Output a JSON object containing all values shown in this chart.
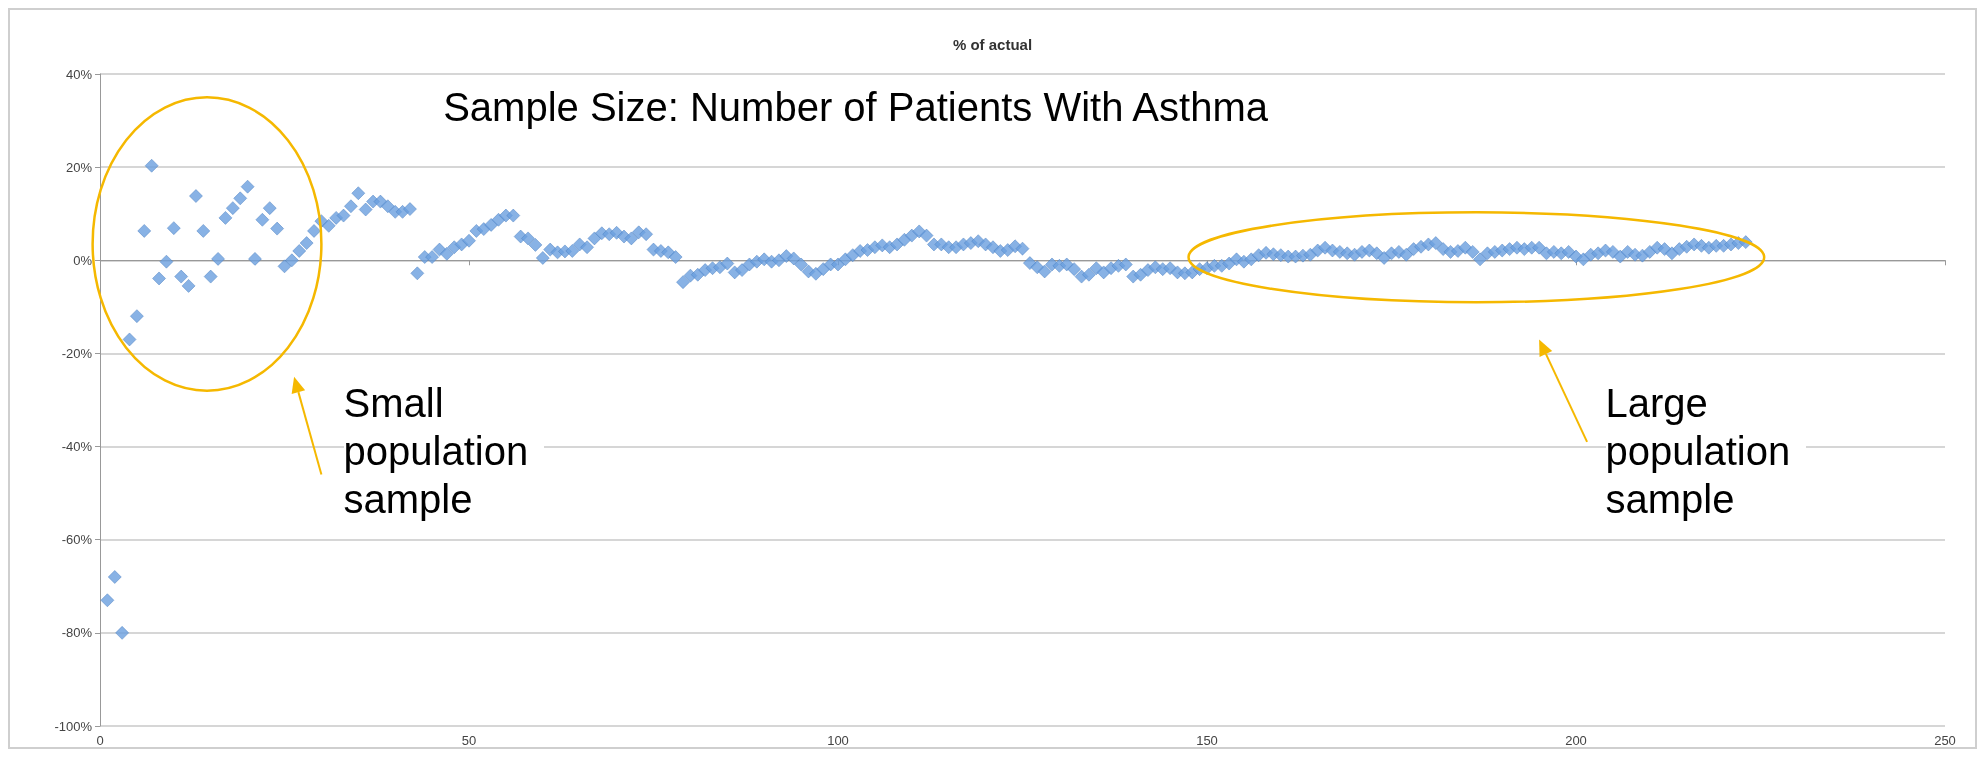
{
  "chart_data": {
    "type": "scatter",
    "title": "% of actual",
    "annotations": [
      "Sample Size: Number of Patients With Asthma",
      "Small population sample",
      "Large population sample"
    ],
    "x": [
      1,
      2,
      3,
      4,
      5,
      6,
      7,
      8,
      9,
      10,
      11,
      12,
      13,
      14,
      15,
      16,
      17,
      18,
      19,
      20,
      21,
      22,
      23,
      24,
      25,
      26,
      27,
      28,
      29,
      30,
      31,
      32,
      33,
      34,
      35,
      36,
      37,
      38,
      39,
      40,
      41,
      42,
      43,
      44,
      45,
      46,
      47,
      48,
      49,
      50,
      51,
      52,
      53,
      54,
      55,
      56,
      57,
      58,
      59,
      60,
      61,
      62,
      63,
      64,
      65,
      66,
      67,
      68,
      69,
      70,
      71,
      72,
      73,
      74,
      75,
      76,
      77,
      78,
      79,
      80,
      81,
      82,
      83,
      84,
      85,
      86,
      87,
      88,
      89,
      90,
      91,
      92,
      93,
      94,
      95,
      96,
      97,
      98,
      99,
      100,
      101,
      102,
      103,
      104,
      105,
      106,
      107,
      108,
      109,
      110,
      111,
      112,
      113,
      114,
      115,
      116,
      117,
      118,
      119,
      120,
      121,
      122,
      123,
      124,
      125,
      126,
      127,
      128,
      129,
      130,
      131,
      132,
      133,
      134,
      135,
      136,
      137,
      138,
      139,
      140,
      141,
      142,
      143,
      144,
      145,
      146,
      147,
      148,
      149,
      150,
      151,
      152,
      153,
      154,
      155,
      156,
      157,
      158,
      159,
      160,
      161,
      162,
      163,
      164,
      165,
      166,
      167,
      168,
      169,
      170,
      171,
      172,
      173,
      174,
      175,
      176,
      177,
      178,
      179,
      180,
      181,
      182,
      183,
      184,
      185,
      186,
      187,
      188,
      189,
      190,
      191,
      192,
      193,
      194,
      195,
      196,
      197,
      198,
      199,
      200,
      201,
      202,
      203,
      204,
      205,
      206,
      207,
      208,
      209,
      210,
      211,
      212,
      213,
      214,
      215,
      216,
      217,
      218,
      219,
      220,
      221,
      222,
      223
    ],
    "series": [
      {
        "color": "#6a9fde",
        "values": [
          -73,
          -68,
          -80,
          -17,
          -12,
          6.3,
          20.3,
          -3.9,
          -0.3,
          6.9,
          -3.5,
          -5.5,
          13.8,
          6.3,
          -3.5,
          0.3,
          9.1,
          11.2,
          13.3,
          15.8,
          0.3,
          8.7,
          11.2,
          6.8,
          -1.3,
          0,
          2,
          3.7,
          6.3,
          8.4,
          7.4,
          9.1,
          9.6,
          11.6,
          14.4,
          10.9,
          12.6,
          12.6,
          11.6,
          10.4,
          10.4,
          11,
          -2.8,
          0.7,
          0.7,
          2.3,
          1.4,
          2.8,
          3.4,
          4.2,
          6.3,
          6.7,
          7.6,
          8.7,
          9.6,
          9.6,
          5.1,
          4.7,
          3.3,
          0.5,
          2.3,
          1.7,
          1.9,
          2,
          3.4,
          2.8,
          4.7,
          5.8,
          5.6,
          5.9,
          5.1,
          4.7,
          6,
          5.6,
          2.3,
          2,
          1.7,
          0.7,
          -4.7,
          -3.3,
          -3.1,
          -2.1,
          -1.7,
          -1.5,
          -0.7,
          -2.6,
          -2.1,
          -0.9,
          -0.3,
          0.2,
          -0.3,
          0,
          0.9,
          0.4,
          -0.9,
          -2.4,
          -2.9,
          -1.9,
          -0.9,
          -0.9,
          0.2,
          1.1,
          2,
          2.2,
          2.8,
          3.2,
          2.8,
          3.4,
          4.4,
          5.3,
          6.2,
          5.3,
          3.4,
          3.4,
          2.8,
          2.8,
          3.4,
          3.7,
          4.1,
          3.4,
          2.8,
          2,
          2.2,
          3,
          2.5,
          -0.6,
          -1.5,
          -2.4,
          -0.9,
          -1.2,
          -0.9,
          -1.9,
          -3.5,
          -3.1,
          -1.7,
          -2.6,
          -1.7,
          -1.2,
          -0.9,
          -3.5,
          -3.1,
          -2.1,
          -1.5,
          -1.9,
          -1.7,
          -2.6,
          -2.8,
          -2.6,
          -1.9,
          -1.7,
          -1.2,
          -1.2,
          -0.7,
          0.2,
          -0.3,
          0.2,
          1.1,
          1.6,
          1.3,
          1.1,
          0.8,
          0.8,
          1,
          1.2,
          2.1,
          2.7,
          2.1,
          1.8,
          1.5,
          1.2,
          1.8,
          2.1,
          1.5,
          0.5,
          1.5,
          1.8,
          1.2,
          2.4,
          2.9,
          3.4,
          3.7,
          2.4,
          1.8,
          2,
          2.7,
          1.8,
          0.2,
          1.5,
          1.8,
          2.1,
          2.4,
          2.7,
          2.4,
          2.7,
          2.7,
          1.5,
          1.8,
          1.5,
          1.8,
          0.8,
          0.2,
          1.2,
          1.5,
          2.1,
          1.8,
          0.8,
          1.8,
          1.2,
          1,
          1.8,
          2.7,
          2.4,
          1.5,
          2.4,
          2.9,
          3.4,
          3.1,
          2.7,
          3.1,
          3.1,
          3.4,
          3.7,
          3.9
        ]
      }
    ],
    "xlim": [
      0,
      250
    ],
    "xticks": [
      0,
      50,
      100,
      150,
      200,
      250
    ],
    "ylim": [
      -100,
      40
    ],
    "yticks": [
      {
        "value": -100,
        "label": "-100%"
      },
      {
        "value": -80,
        "label": "-80%"
      },
      {
        "value": -60,
        "label": "-60%"
      },
      {
        "value": -40,
        "label": "-40%"
      },
      {
        "value": -20,
        "label": "-20%"
      },
      {
        "value": 0,
        "label": "0%"
      },
      {
        "value": 20,
        "label": "20%"
      },
      {
        "value": 40,
        "label": "40%"
      }
    ],
    "grid": "y",
    "marker": "diamond"
  }
}
